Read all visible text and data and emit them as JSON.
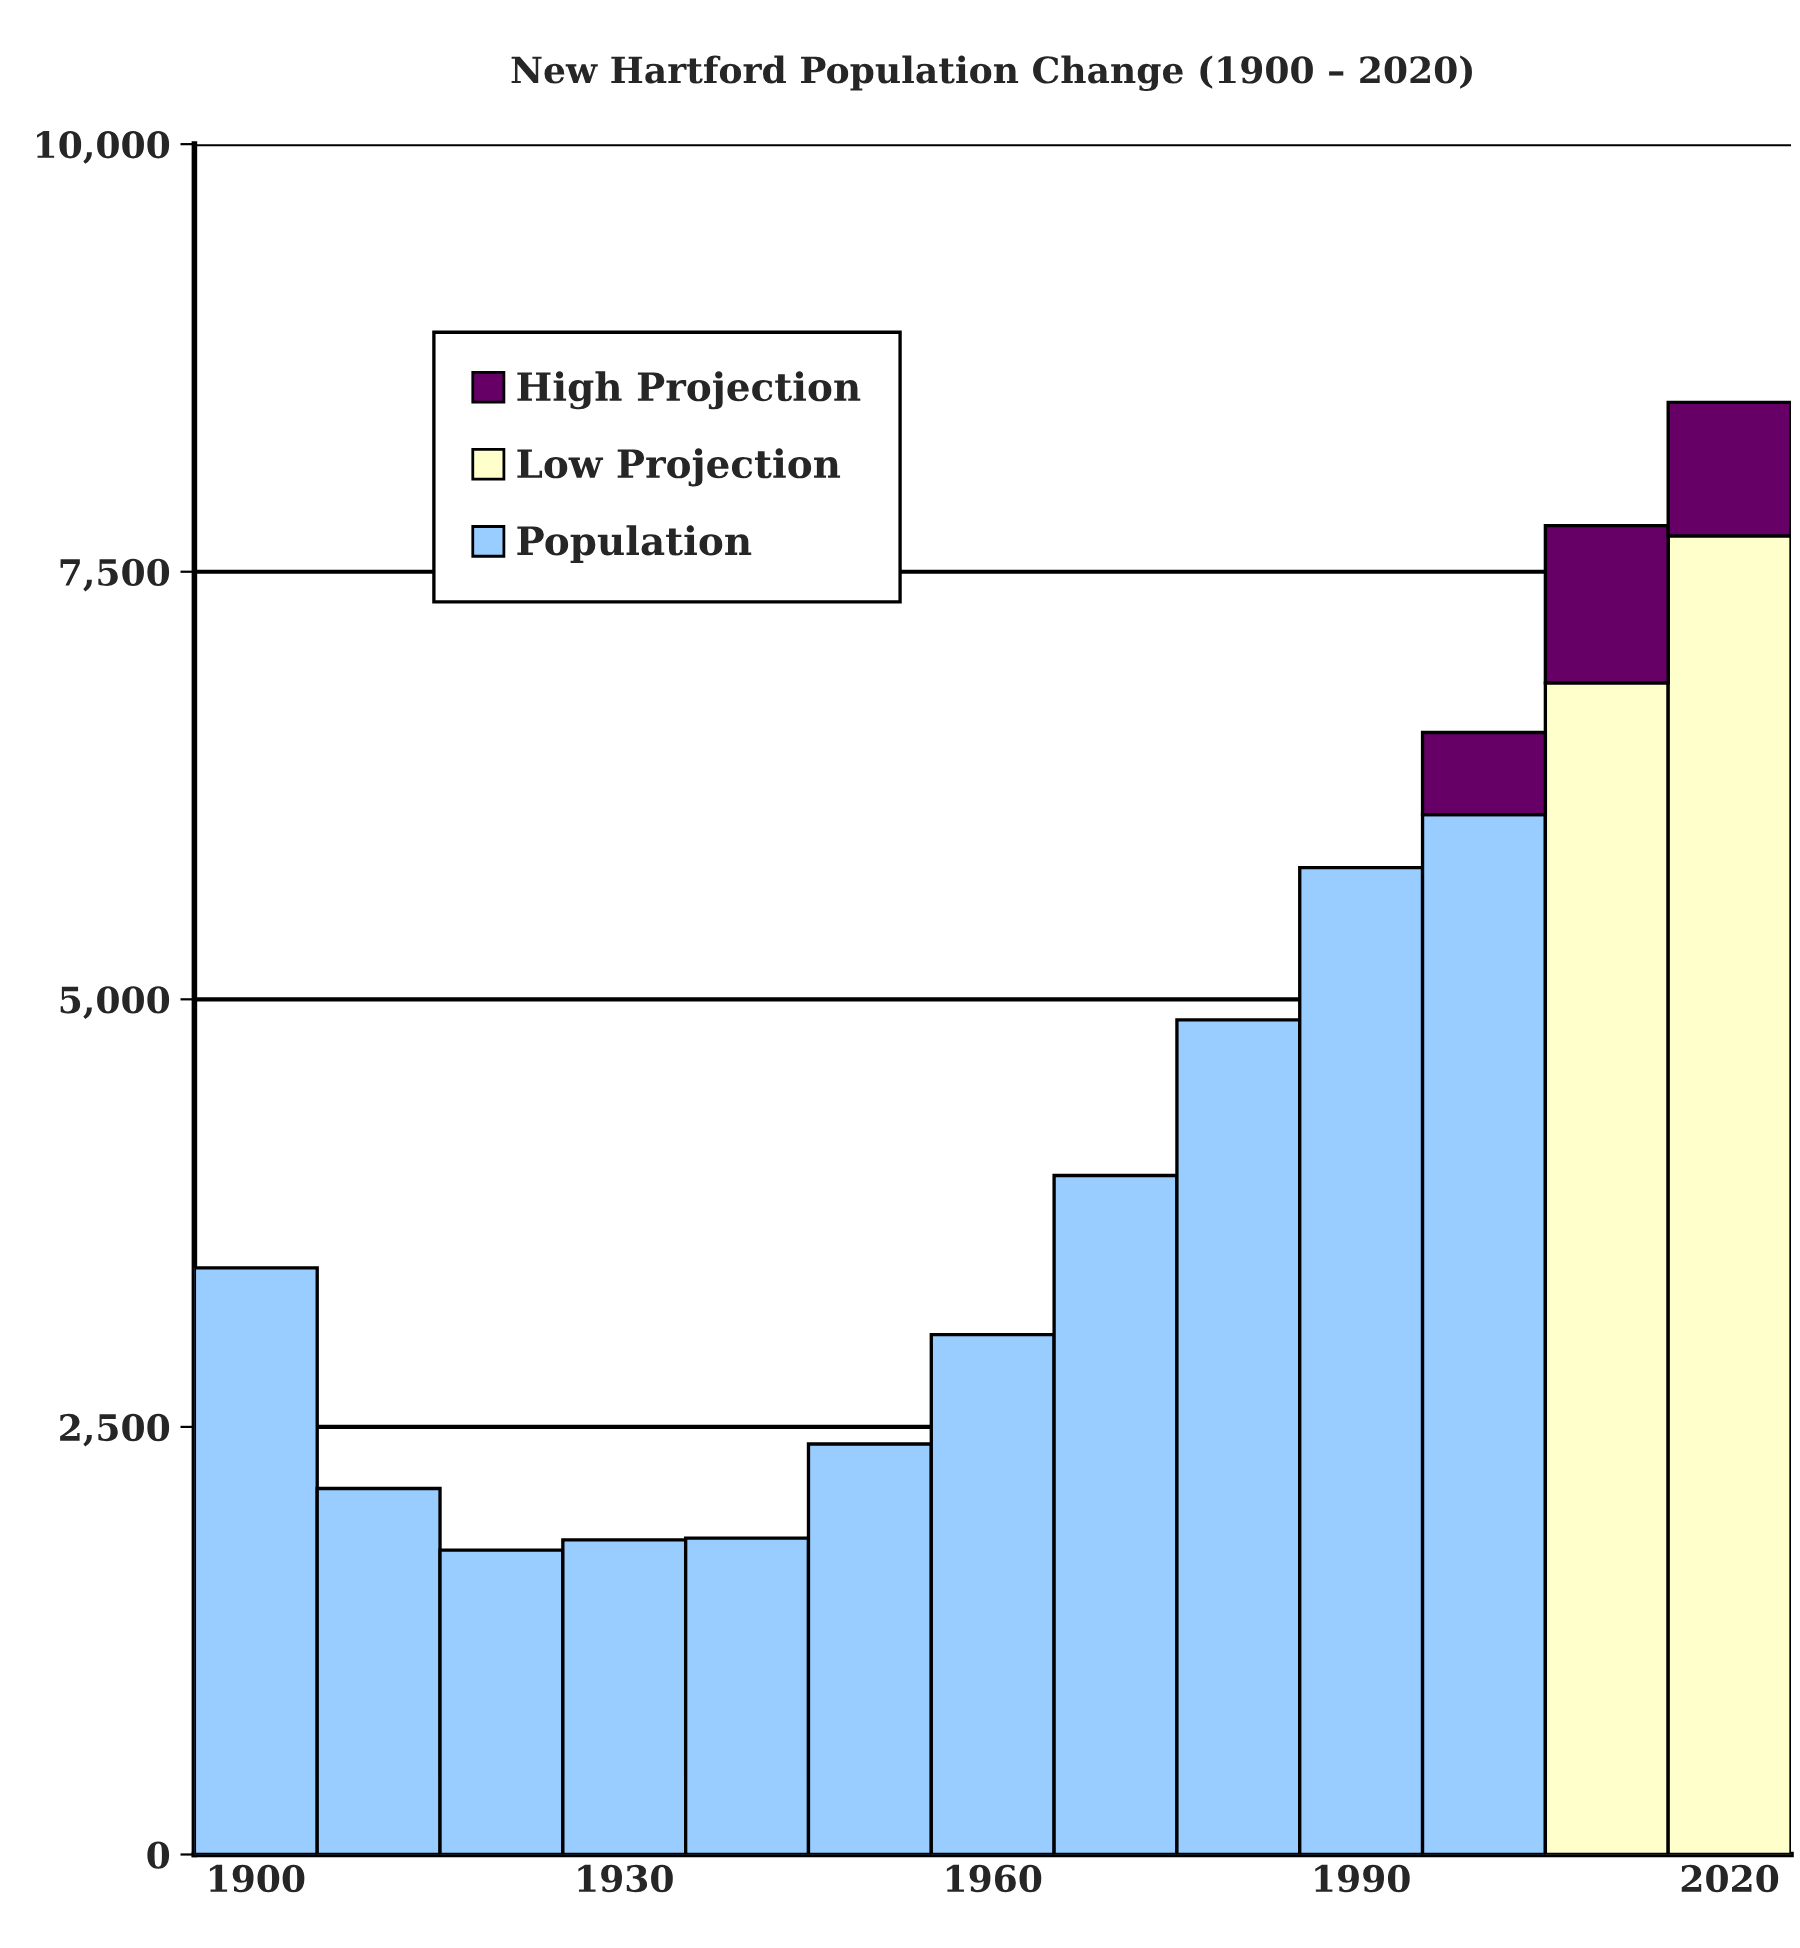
{
  "chart_data": {
    "type": "bar",
    "title": "New Hartford Population Change (1900 – 2020)",
    "categories": [
      "1900",
      null,
      null,
      "1930",
      null,
      null,
      "1960",
      null,
      null,
      "1990",
      null,
      null,
      "2020"
    ],
    "stacked": true,
    "series": [
      {
        "name": "Population",
        "color": "#99ccff",
        "values": [
          3430,
          2140,
          1780,
          1840,
          1850,
          2400,
          3040,
          3970,
          4880,
          5770,
          6080,
          null,
          null
        ]
      },
      {
        "name": "Low Projection",
        "color": "#ffffcc",
        "values": [
          null,
          null,
          null,
          null,
          null,
          null,
          null,
          null,
          null,
          null,
          null,
          6850,
          7710
        ]
      },
      {
        "name": "High Projection",
        "color": "#660066",
        "values": [
          null,
          null,
          null,
          null,
          null,
          null,
          null,
          null,
          null,
          null,
          480,
          920,
          780
        ]
      }
    ],
    "ylim": [
      0,
      10000
    ],
    "yticks": [
      {
        "value": 0,
        "label": "0"
      },
      {
        "value": 2500,
        "label": "2,500"
      },
      {
        "value": 5000,
        "label": "5,000"
      },
      {
        "value": 7500,
        "label": "7,500"
      },
      {
        "value": 10000,
        "label": "10,000"
      }
    ],
    "grid": "y",
    "legend": "top left"
  }
}
